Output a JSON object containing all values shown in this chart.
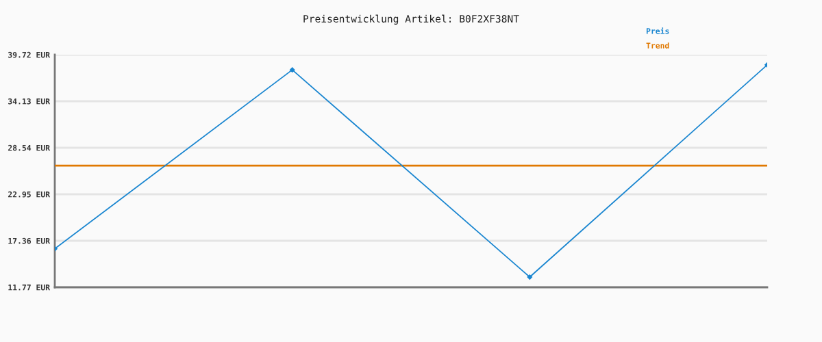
{
  "chart_data": {
    "type": "line",
    "title": "Preisentwicklung Artikel: B0F2XF38NT",
    "categories": [
      null,
      null,
      null,
      null
    ],
    "series": [
      {
        "name": "Preis",
        "color": "#1a86d0",
        "values": [
          16.4,
          37.9,
          13.0,
          38.5
        ],
        "marker": "diamond"
      },
      {
        "name": "Trend",
        "color": "#e07800",
        "values": [
          26.4,
          26.4,
          26.4,
          26.4
        ],
        "marker": "none"
      }
    ],
    "ylim": [
      11.77,
      39.72
    ],
    "yticks": [
      {
        "value": 11.77,
        "label": "11.77 EUR"
      },
      {
        "value": 17.36,
        "label": "17.36 EUR"
      },
      {
        "value": 22.95,
        "label": "22.95 EUR"
      },
      {
        "value": 28.54,
        "label": "28.54 EUR"
      },
      {
        "value": 34.13,
        "label": "34.13 EUR"
      },
      {
        "value": 39.72,
        "label": "39.72 EUR"
      }
    ],
    "grid": "y",
    "legend": "top right",
    "tick_labels": "y",
    "line_style": "solid"
  }
}
